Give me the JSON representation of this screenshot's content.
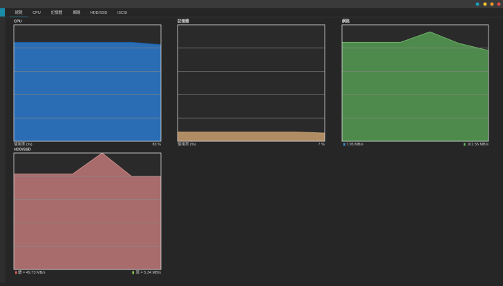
{
  "tabs": [
    "總覽",
    "CPU",
    "記憶體",
    "網路",
    "HDD/SSD",
    "iSCSI"
  ],
  "panels": [
    {
      "title": "CPU",
      "footer_left": "使用率 (%)",
      "footer_right": "83 %",
      "chart": {
        "type": "area",
        "categories": [
          null,
          null,
          null,
          null,
          null,
          null
        ],
        "values": [
          85,
          85,
          85,
          85,
          85,
          83
        ],
        "color": "#2a6db4",
        "line_color": "#1b5aa0",
        "ylim": [
          0,
          100
        ],
        "yticks": [
          0,
          20,
          40,
          60,
          80,
          100
        ],
        "grid": true
      }
    },
    {
      "title": "記憶體",
      "footer_left": "使用率 (%)",
      "footer_right": "7 %",
      "chart": {
        "type": "area",
        "categories": [
          null,
          null,
          null,
          null,
          null,
          null
        ],
        "values": [
          8,
          8,
          8,
          8,
          8,
          7
        ],
        "color": "#b08c64",
        "line_color": "#c9a070",
        "ylim": [
          0,
          100
        ],
        "yticks": [
          0,
          20,
          40,
          60,
          80,
          100
        ],
        "grid": true
      }
    },
    {
      "title": "網路",
      "footer_left": "7.95 MB/s",
      "footer_right": "101.55 MB/s",
      "footer_left_color": "#3a8fd0",
      "footer_right_color": "#5cb85c",
      "chart": {
        "type": "area",
        "categories": [
          null,
          null,
          null,
          null,
          null,
          null
        ],
        "values": [
          85,
          85,
          85,
          94,
          84,
          78
        ],
        "color": "#4e8a4c",
        "line_color": "#6fb56a",
        "ylim": [
          0,
          100
        ],
        "yticks": [
          0,
          20,
          40,
          60,
          80,
          100
        ],
        "grid": true
      }
    },
    {
      "title": "HDD/SSD",
      "footer_left": "讀 = 49.73 MB/s",
      "footer_right": "寫 = 5.34 MB/s",
      "footer_left_color": "#e06060",
      "footer_right_color": "#8fd050",
      "chart": {
        "type": "area",
        "categories": [
          null,
          null,
          null,
          null,
          null,
          null
        ],
        "values": [
          82,
          82,
          82,
          100,
          80,
          80
        ],
        "color": "#a86c6c",
        "line_color": "#c98888",
        "ylim": [
          0,
          100
        ],
        "yticks": [
          0,
          20,
          40,
          60,
          80,
          100
        ],
        "grid": true
      }
    }
  ]
}
